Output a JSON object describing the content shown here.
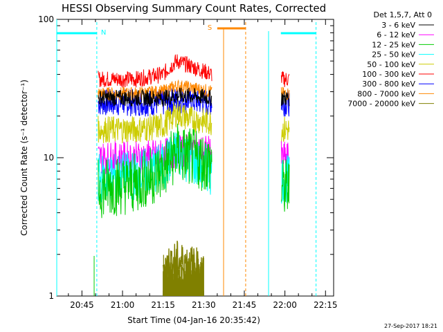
{
  "chart_data": {
    "type": "line",
    "title": "HESSI Observing Summary Count Rates, Corrected",
    "xlabel": "Start Time (04-Jan-16 20:35:42)",
    "ylabel": "Corrected Count Rate (s⁻¹ detector⁻¹)",
    "y_scale": "log",
    "ylim": [
      1,
      100
    ],
    "xlim": [
      "20:35:42",
      "22:18:00"
    ],
    "x_ticks": [
      "20:45",
      "21:00",
      "21:15",
      "21:30",
      "21:45",
      "22:00",
      "22:15"
    ],
    "y_ticks": [
      "1",
      "10",
      "100"
    ],
    "legend_header": "Det 1,5,7, Att 0",
    "legend_position": "right-outside",
    "series": [
      {
        "name": "3 - 6 keV",
        "color": "#000000",
        "x": [
          "20:51",
          "21:05",
          "21:15",
          "21:20",
          "21:25",
          "21:33"
        ],
        "values": [
          27,
          27,
          27,
          28,
          28,
          27
        ]
      },
      {
        "name": "6 - 12 keV",
        "color": "#ff00ff",
        "x": [
          "20:51",
          "21:05",
          "21:15",
          "21:20",
          "21:25",
          "21:33"
        ],
        "values": [
          10,
          10,
          10.5,
          11,
          11.5,
          11
        ]
      },
      {
        "name": "12 - 25 keV",
        "color": "#00cc00",
        "x": [
          "20:51",
          "21:05",
          "21:15",
          "21:20",
          "21:25",
          "21:33"
        ],
        "values": [
          6,
          6.5,
          8,
          11,
          10,
          9
        ]
      },
      {
        "name": "25 - 50 keV",
        "color": "#00ffff",
        "x": [
          "20:51",
          "21:05",
          "21:15",
          "21:20",
          "21:25",
          "21:33"
        ],
        "values": [
          7,
          7.5,
          8.5,
          11,
          9.5,
          8
        ]
      },
      {
        "name": "50 - 100 keV",
        "color": "#cccc00",
        "x": [
          "20:51",
          "21:05",
          "21:15",
          "21:20",
          "21:25",
          "21:33"
        ],
        "values": [
          16,
          16,
          17,
          21,
          19,
          18
        ]
      },
      {
        "name": "100 - 300 keV",
        "color": "#ff0000",
        "x": [
          "20:51",
          "21:05",
          "21:15",
          "21:20",
          "21:25",
          "21:33"
        ],
        "values": [
          37,
          37,
          40,
          50,
          46,
          40
        ]
      },
      {
        "name": "300 - 800 keV",
        "color": "#0000ff",
        "x": [
          "20:51",
          "21:05",
          "21:15",
          "21:20",
          "21:25",
          "21:33"
        ],
        "values": [
          25,
          25,
          25,
          26,
          26,
          25
        ]
      },
      {
        "name": "800 - 7000 keV",
        "color": "#ff8800",
        "x": [
          "20:51",
          "21:05",
          "21:15",
          "21:20",
          "21:25",
          "21:33"
        ],
        "values": [
          29,
          29,
          30,
          33,
          32,
          30
        ]
      },
      {
        "name": "7000 - 20000 keV",
        "color": "#808000",
        "x": [
          "21:15",
          "21:20",
          "21:25",
          "21:30"
        ],
        "values": [
          1.6,
          1.8,
          1.7,
          1.5
        ]
      }
    ],
    "flag_bars": [
      {
        "label": "N",
        "color": "#00ffff",
        "start": "20:35:42",
        "end": "20:50:30"
      },
      {
        "label": "",
        "color": "#00ffff",
        "start": "21:58:30",
        "end": "22:11:30"
      },
      {
        "label": "S",
        "color": "#ff8800",
        "start": "21:35:00",
        "end": "21:45:30"
      }
    ],
    "dashed_lines": [
      {
        "x": "20:50:30",
        "color": "#00ffff"
      },
      {
        "x": "21:45:30",
        "color": "#ff8800"
      },
      {
        "x": "22:11:30",
        "color": "#00ffff"
      }
    ],
    "timestamp": "27-Sep-2017 18:21"
  }
}
